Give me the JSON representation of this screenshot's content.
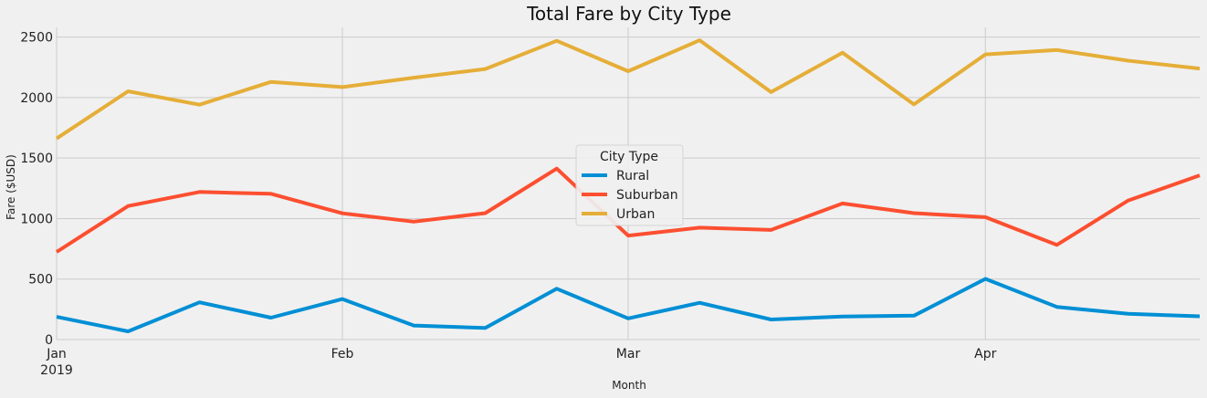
{
  "chart_data": {
    "type": "line",
    "title": "Total Fare by City Type",
    "xlabel": "Month",
    "ylabel": "Fare ($USD)",
    "x": [
      "2019-01-06",
      "2019-01-13",
      "2019-01-20",
      "2019-01-27",
      "2019-02-03",
      "2019-02-10",
      "2019-02-17",
      "2019-02-24",
      "2019-03-03",
      "2019-03-10",
      "2019-03-17",
      "2019-03-24",
      "2019-03-31",
      "2019-04-07",
      "2019-04-14",
      "2019-04-21",
      "2019-04-28"
    ],
    "xlim": [
      "2019-01-06",
      "2019-04-28"
    ],
    "ylim": [
      0,
      2580
    ],
    "y_ticks": [
      0,
      500,
      1000,
      1500,
      2000,
      2500
    ],
    "y_tick_labels": [
      "0",
      "500",
      "1000",
      "1500",
      "2000",
      "2500"
    ],
    "x_ticks": [
      "2019-01-06",
      "2019-02-03",
      "2019-03-03",
      "2019-04-07"
    ],
    "x_tick_labels": [
      "Jan",
      "Feb",
      "Mar",
      "Apr"
    ],
    "x_year_label": "2019",
    "grid": true,
    "series": [
      {
        "name": "Rural",
        "color": "#008fd5",
        "values": [
          188,
          68,
          308,
          181,
          335,
          116,
          96,
          420,
          175,
          304,
          166,
          191,
          198,
          502,
          270,
          213,
          192
        ]
      },
      {
        "name": "Suburban",
        "color": "#fc4f30",
        "values": [
          724,
          1104,
          1220,
          1205,
          1043,
          975,
          1045,
          1413,
          859,
          925,
          906,
          1125,
          1045,
          1012,
          782,
          1150,
          1357
        ]
      },
      {
        "name": "Urban",
        "color": "#e5ae38",
        "values": [
          1662,
          2052,
          1941,
          2130,
          2087,
          2164,
          2236,
          2469,
          2218,
          2474,
          2045,
          2371,
          1943,
          2357,
          2393,
          2305,
          2240
        ]
      }
    ],
    "legend": {
      "title": "City Type",
      "position": "center"
    }
  },
  "colors": {
    "background": "#f0f0f0",
    "grid": "#cbcbcb"
  }
}
